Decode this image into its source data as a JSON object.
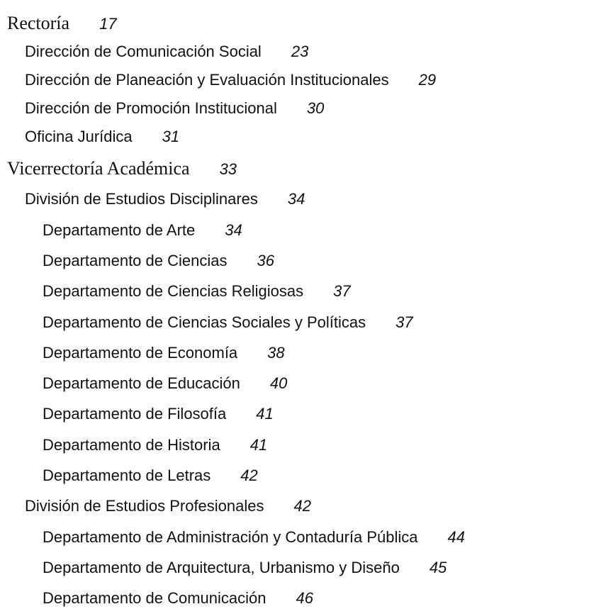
{
  "sections": [
    {
      "title": "Rectoría",
      "page": "17",
      "entries": [
        {
          "title": "Dirección de Comunicación Social",
          "page": "23"
        },
        {
          "title": "Dirección de Planeación y Evaluación Institucionales",
          "page": "29"
        },
        {
          "title": "Dirección de Promoción Institucional",
          "page": "30"
        },
        {
          "title": "Oficina Jurídica",
          "page": "31"
        }
      ]
    },
    {
      "title": "Vicerrectoría Académica",
      "page": "33",
      "entries": [
        {
          "title": "División de Estudios Disciplinares",
          "page": "34",
          "children": [
            {
              "title": "Departamento de Arte",
              "page": "34"
            },
            {
              "title": "Departamento de Ciencias",
              "page": "36"
            },
            {
              "title": "Departamento de Ciencias Religiosas",
              "page": "37"
            },
            {
              "title": "Departamento de Ciencias Sociales y Políticas",
              "page": "37"
            },
            {
              "title": "Departamento de Economía",
              "page": "38"
            },
            {
              "title": "Departamento de Educación",
              "page": "40"
            },
            {
              "title": "Departamento de Filosofía",
              "page": "41"
            },
            {
              "title": "Departamento de Historia",
              "page": "41"
            },
            {
              "title": "Departamento de Letras",
              "page": "42"
            }
          ]
        },
        {
          "title": "División de Estudios Profesionales",
          "page": "42",
          "children": [
            {
              "title": "Departamento de Administración y Contaduría Pública",
              "page": "44"
            },
            {
              "title": "Departamento de Arquitectura, Urbanismo y Diseño",
              "page": "45"
            },
            {
              "title": "Departamento de Comunicación",
              "page": "46"
            }
          ]
        }
      ]
    }
  ]
}
